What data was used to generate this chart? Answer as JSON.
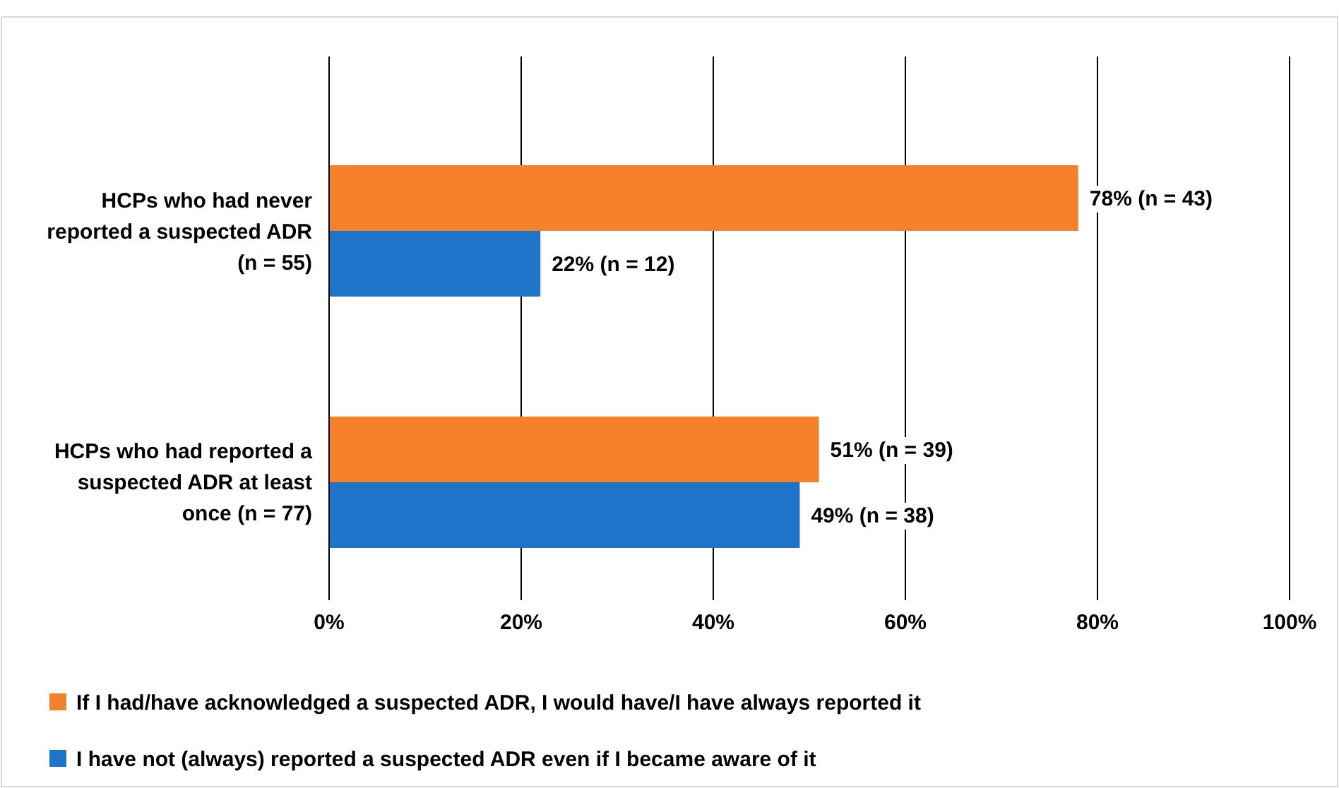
{
  "chart_data": {
    "type": "bar",
    "orientation": "horizontal",
    "categories": [
      "HCPs who had never reported a suspected ADR (n = 55)",
      "HCPs who had reported a suspected ADR at least once (n = 77)"
    ],
    "series": [
      {
        "name": "If I had/have acknowledged a suspected ADR, I would have/I have always reported it",
        "color": "#f5822a",
        "values": [
          78,
          51
        ],
        "value_labels": [
          "78% (n = 43)",
          "51% (n = 39)"
        ]
      },
      {
        "name": "I have not (always) reported a suspected ADR even if I became aware of it",
        "color": "#1f73c8",
        "values": [
          22,
          49
        ],
        "value_labels": [
          "22% (n = 12)",
          "49% (n = 38)"
        ]
      }
    ],
    "xlim": [
      0,
      100
    ],
    "xticks": [
      {
        "value": 0,
        "label": "0%"
      },
      {
        "value": 20,
        "label": "20%"
      },
      {
        "value": 40,
        "label": "40%"
      },
      {
        "value": 60,
        "label": "60%"
      },
      {
        "value": 80,
        "label": "80%"
      },
      {
        "value": 100,
        "label": "100%"
      }
    ],
    "grid": "x",
    "legend": "bottom"
  }
}
